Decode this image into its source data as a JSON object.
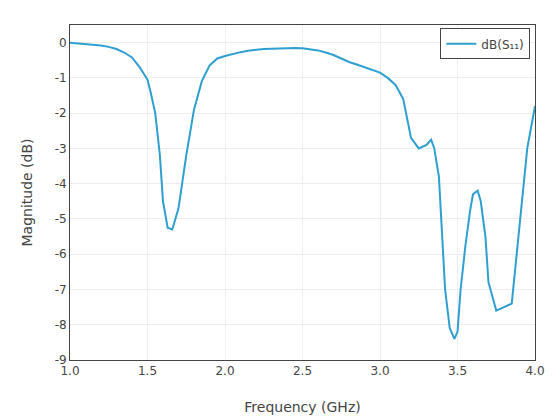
{
  "chart_data": {
    "type": "line",
    "xlabel": "Frequency (GHz)",
    "ylabel": "Magnitude (dB)",
    "xlim": [
      1,
      4
    ],
    "ylim": [
      -9,
      0.5
    ],
    "xticks": [
      {
        "value": 1.0,
        "label": "1.0"
      },
      1.5,
      {
        "value": 2.0,
        "label": "2.0"
      },
      2.5,
      {
        "value": 3.0,
        "label": "3.0"
      },
      3.5,
      {
        "value": 4.0,
        "label": "4.0"
      }
    ],
    "yticks": [
      0,
      -1,
      -2,
      -3,
      -4,
      -5,
      -6,
      -7,
      -8,
      -9
    ],
    "grid": true,
    "legend": "upper right",
    "x": [
      1.0,
      1.05,
      1.1,
      1.15,
      1.2,
      1.25,
      1.3,
      1.35,
      1.4,
      1.45,
      1.5,
      1.52,
      1.55,
      1.58,
      1.6,
      1.63,
      1.66,
      1.7,
      1.75,
      1.8,
      1.85,
      1.9,
      1.95,
      2.0,
      2.05,
      2.1,
      2.15,
      2.2,
      2.25,
      2.3,
      2.35,
      2.4,
      2.45,
      2.5,
      2.55,
      2.6,
      2.65,
      2.7,
      2.75,
      2.8,
      2.85,
      2.9,
      2.95,
      3.0,
      3.05,
      3.1,
      3.15,
      3.2,
      3.25,
      3.3,
      3.33,
      3.35,
      3.38,
      3.4,
      3.42,
      3.45,
      3.48,
      3.5,
      3.52,
      3.55,
      3.58,
      3.6,
      3.63,
      3.65,
      3.68,
      3.7,
      3.75,
      3.8,
      3.85,
      3.9,
      3.95,
      4.0
    ],
    "series": [
      {
        "name": "dB(S₁₁)",
        "color": "#2E9FD0",
        "values": [
          0.0,
          -0.02,
          -0.03,
          -0.05,
          -0.08,
          -0.12,
          -0.18,
          -0.28,
          -0.42,
          -0.7,
          -1.05,
          -1.4,
          -2.0,
          -3.2,
          -4.5,
          -5.25,
          -5.3,
          -4.7,
          -3.2,
          -1.9,
          -1.1,
          -0.65,
          -0.45,
          -0.38,
          -0.32,
          -0.27,
          -0.23,
          -0.2,
          -0.18,
          -0.17,
          -0.16,
          -0.15,
          -0.15,
          -0.16,
          -0.18,
          -0.22,
          -0.28,
          -0.35,
          -0.45,
          -0.55,
          -0.62,
          -0.7,
          -0.78,
          -0.85,
          -1.0,
          -1.2,
          -1.6,
          -2.7,
          -3.0,
          -2.9,
          -2.75,
          -3.0,
          -3.8,
          -5.5,
          -7.0,
          -8.1,
          -8.4,
          -8.2,
          -7.0,
          -5.8,
          -4.8,
          -4.3,
          -4.2,
          -4.5,
          -5.5,
          -6.8,
          -7.6,
          -7.5,
          -7.4,
          -5.2,
          -3.0,
          -1.8
        ]
      }
    ]
  }
}
